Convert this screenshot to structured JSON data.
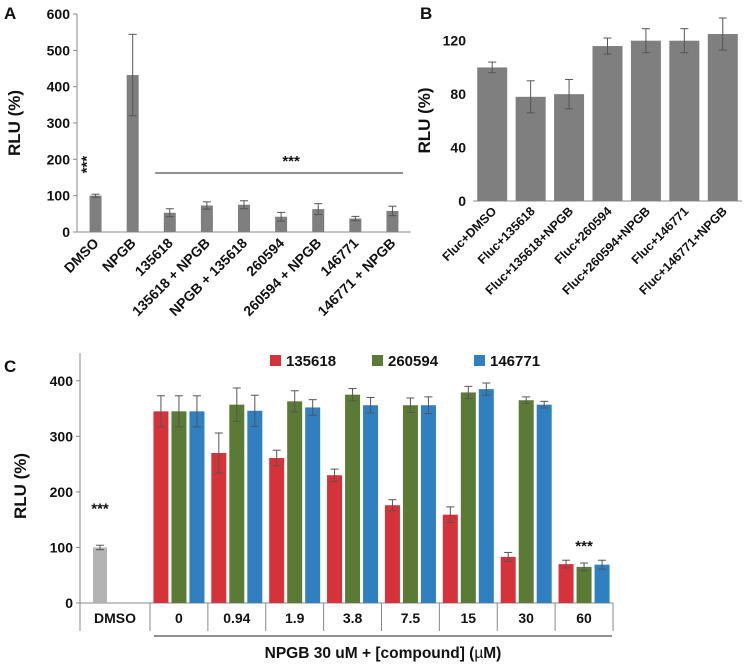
{
  "figure_label": "Three-panel bar chart figure",
  "colors": {
    "gray_bar": "#7f7f7f",
    "light_gray_bar": "#b3b3b3",
    "red": "#d6323a",
    "green": "#5a7a35",
    "blue": "#2f7fc1",
    "axis": "#888888",
    "error": "#555555"
  },
  "chart_data": [
    {
      "panel": "A",
      "type": "bar",
      "ylabel": "RLU (%)",
      "xlabel": "",
      "ylim": [
        0,
        600
      ],
      "yticks": [
        0,
        100,
        200,
        300,
        400,
        500,
        600
      ],
      "categories": [
        "DMSO",
        "NPGB",
        "135618",
        "135618 + NPGB",
        "NPGB + 135618",
        "260594",
        "260594 + NPGB",
        "146771",
        "146771 + NPGB"
      ],
      "values": [
        100,
        432,
        53,
        73,
        75,
        42,
        63,
        37,
        58
      ],
      "errors": [
        4,
        112,
        11,
        10,
        11,
        12,
        15,
        6,
        13
      ],
      "annotations": [
        {
          "text": "***",
          "category": "DMSO",
          "note": "rotated above DMSO bar"
        },
        {
          "text": "***",
          "span": [
            "135618",
            "146771 + NPGB"
          ],
          "note": "bracket line over compound bars"
        }
      ]
    },
    {
      "panel": "B",
      "type": "bar",
      "ylabel": "RLU (%)",
      "xlabel": "",
      "ylim": [
        0,
        140
      ],
      "yticks": [
        0,
        40,
        80,
        120
      ],
      "categories": [
        "Fluc+DMSO",
        "Fluc+135618",
        "Fluc+135618+NPGB",
        "Fluc+260594",
        "Fluc+260594+NPGB",
        "Fluc+146771",
        "Fluc+146771+NPGB"
      ],
      "values": [
        100,
        78,
        80,
        116,
        120,
        120,
        125
      ],
      "errors": [
        4,
        12,
        11,
        6,
        9,
        9,
        12
      ]
    },
    {
      "panel": "C",
      "type": "bar",
      "ylabel": "RLU (%)",
      "xlabel": "NPGB 30 uM  +  [compound]  (µM)",
      "xlabel_parts": [
        "NPGB 30 uM  +  [compound]  (",
        "µ",
        "M)"
      ],
      "ylim": [
        0,
        450
      ],
      "yticks": [
        0,
        100,
        200,
        300,
        400
      ],
      "control": {
        "name": "DMSO",
        "value": 100,
        "error": 4,
        "annotation": "***"
      },
      "categories": [
        "0",
        "0.94",
        "1.9",
        "3.8",
        "7.5",
        "15",
        "30",
        "60"
      ],
      "series": [
        {
          "name": "135618",
          "values": [
            345,
            270,
            261,
            230,
            176,
            159,
            83,
            70
          ],
          "errors": [
            28,
            36,
            14,
            11,
            10,
            14,
            8,
            7
          ]
        },
        {
          "name": "260594",
          "values": [
            345,
            357,
            363,
            375,
            356,
            379,
            365,
            65
          ],
          "errors": [
            28,
            30,
            19,
            11,
            13,
            11,
            6,
            7
          ]
        },
        {
          "name": "146771",
          "values": [
            345,
            346,
            352,
            356,
            356,
            385,
            357,
            69
          ],
          "errors": [
            28,
            28,
            14,
            14,
            15,
            11,
            6,
            8
          ]
        }
      ],
      "legend_position": "top",
      "annotations": [
        {
          "text": "***",
          "category": "60"
        }
      ]
    }
  ]
}
